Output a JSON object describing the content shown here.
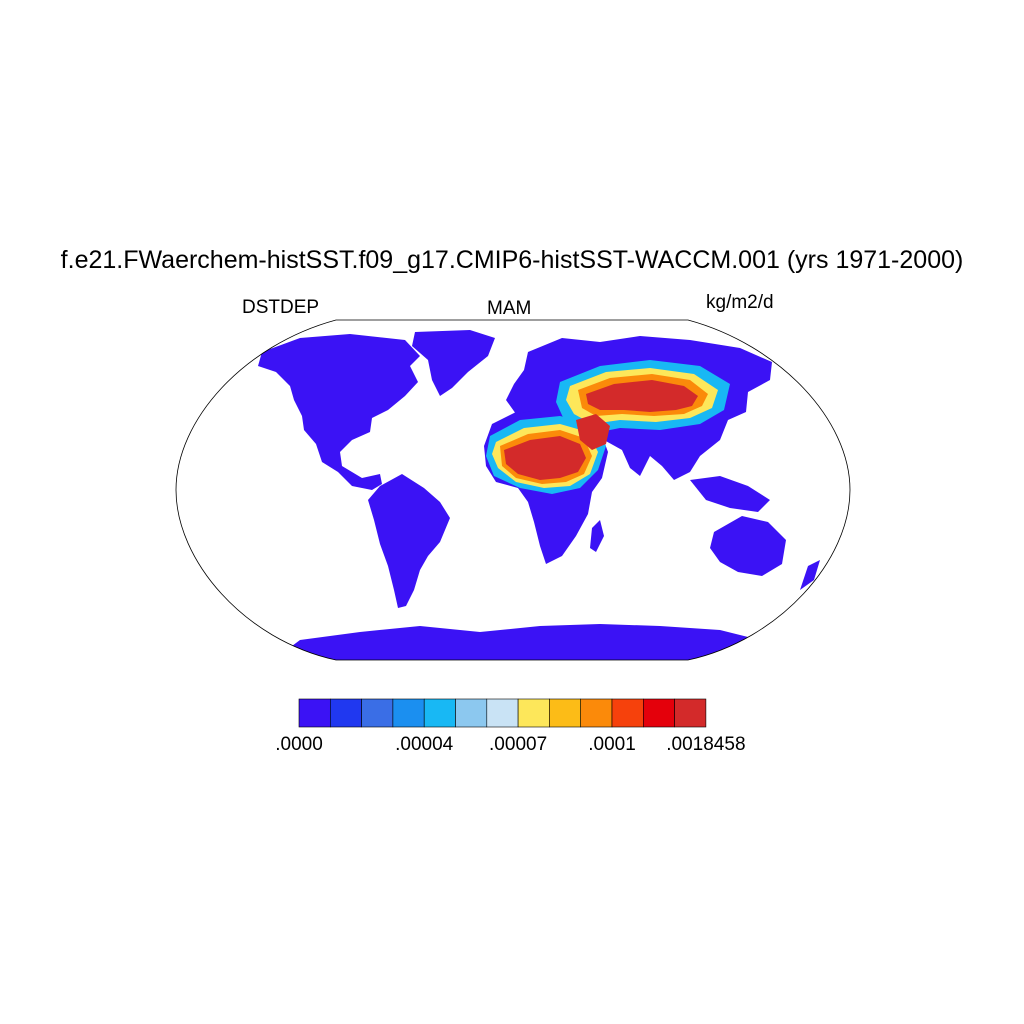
{
  "title": "f.e21.FWaerchem-histSST.f09_g17.CMIP6-histSST-WACCM.001 (yrs 1971-2000)",
  "variable": "DSTDEP",
  "season": "MAM",
  "units": "kg/m2/d",
  "colorbar": {
    "colors": [
      "#3b12f5",
      "#2038f0",
      "#3a6ee6",
      "#1b8ff0",
      "#18b8f4",
      "#8cc8ef",
      "#c9e3f5",
      "#fde75a",
      "#fcbc17",
      "#fb8a0a",
      "#f6410c",
      "#e4000b",
      "#d32a2a"
    ],
    "labels": [
      {
        "text": ".0000",
        "box": 0
      },
      {
        "text": ".00004",
        "box": 4
      },
      {
        "text": ".00007",
        "box": 7
      },
      {
        "text": ".0001",
        "box": 10
      },
      {
        "text": ".0018458",
        "box": 13
      }
    ]
  },
  "map_colors": {
    "ocean": "#ffffff",
    "low": "#3b12f5",
    "high": "#d32a2a"
  }
}
